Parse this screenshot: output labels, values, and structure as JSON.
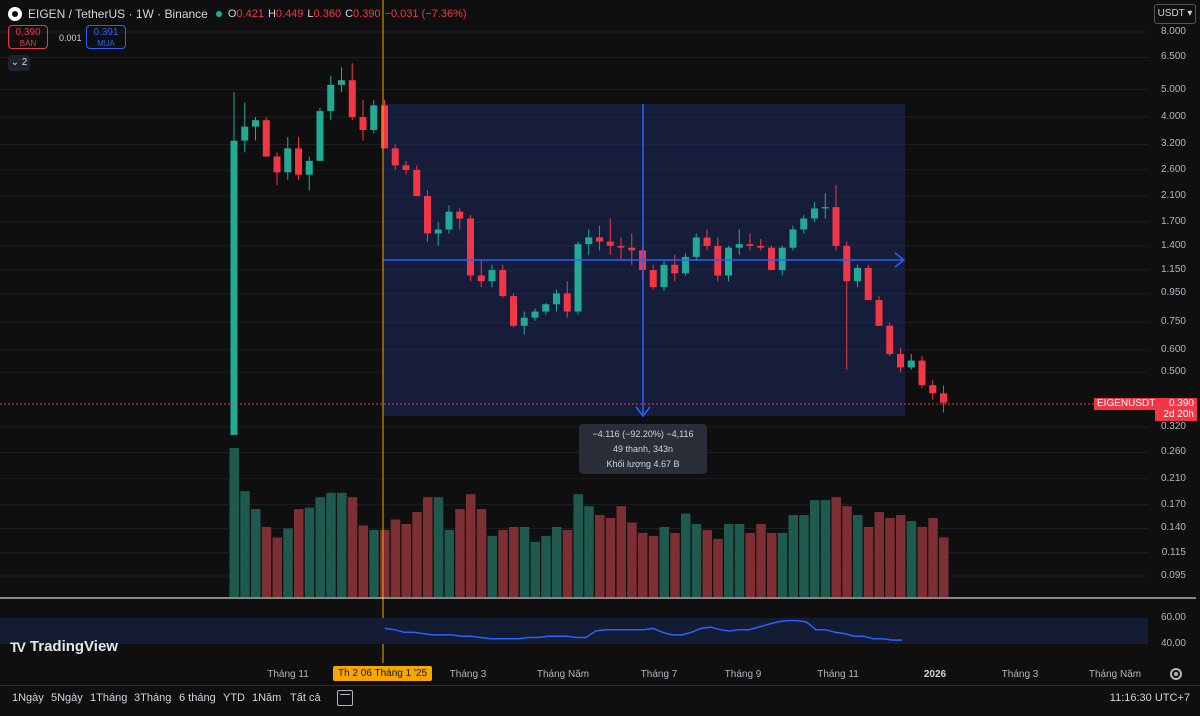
{
  "header": {
    "symbol": "EIGEN / TetherUS · 1W · Binance",
    "open_label": "O",
    "open": "0.421",
    "high_label": "H",
    "high": "0.449",
    "low_label": "L",
    "low": "0.360",
    "close_label": "C",
    "close": "0.390",
    "change": "−0.031 (−7.36%)"
  },
  "trade": {
    "sell_price": "0.390",
    "sell_label": "BÁN",
    "spread": "0.001",
    "buy_price": "0.391",
    "buy_label": "MUA"
  },
  "indicators_collapse": "⌄ 2",
  "currency_select": "USDT",
  "price_tag": {
    "symbol": "EIGENUSDT",
    "price": "0.390",
    "countdown": "2d 20h"
  },
  "measure_info": {
    "line1": "−4.116 (−92.20%) −4,116",
    "line2": "49 thanh, 343n",
    "line3": "Khối lượng 4.67 B"
  },
  "crosshair_date": "Th 2 06 Tháng 1 '25",
  "brand": "TradingView",
  "range_buttons": [
    "1Ngày",
    "5Ngày",
    "1Tháng",
    "3Tháng",
    "6 tháng",
    "YTD",
    "1Năm",
    "Tất cả"
  ],
  "clock": "11:16:30 UTC+7",
  "colors": {
    "up": "#22ab94",
    "down": "#f23645",
    "measure": "#2962ff",
    "crosshair": "#f7a600",
    "rsi": "#2962ff"
  },
  "chart_data": {
    "type": "candlestick",
    "title": "EIGEN / TetherUS · 1W · Binance",
    "price_scale": "log",
    "y_ticks": [
      "8.000",
      "6.500",
      "5.000",
      "4.000",
      "3.200",
      "2.600",
      "2.100",
      "1.700",
      "1.400",
      "1.150",
      "0.950",
      "0.750",
      "0.600",
      "0.500",
      "0.320",
      "0.260",
      "0.210",
      "0.170",
      "0.140",
      "0.115",
      "0.095"
    ],
    "x_ticks": [
      "Tháng 11",
      "Tháng 3",
      "Tháng Năm",
      "Tháng 7",
      "Tháng 9",
      "Tháng 11",
      "2026",
      "Tháng 3",
      "Tháng Năm"
    ],
    "rsi_ticks": [
      "60.00",
      "40.00"
    ],
    "candles": [
      {
        "o": 0.3,
        "h": 4.9,
        "l": 0.3,
        "c": 3.3
      },
      {
        "o": 3.3,
        "h": 4.5,
        "l": 3.0,
        "c": 3.7
      },
      {
        "o": 3.7,
        "h": 4.0,
        "l": 3.3,
        "c": 3.9
      },
      {
        "o": 3.9,
        "h": 4.0,
        "l": 2.9,
        "c": 2.9
      },
      {
        "o": 2.9,
        "h": 3.0,
        "l": 2.3,
        "c": 2.55
      },
      {
        "o": 2.55,
        "h": 3.4,
        "l": 2.4,
        "c": 3.1
      },
      {
        "o": 3.1,
        "h": 3.4,
        "l": 2.4,
        "c": 2.5
      },
      {
        "o": 2.5,
        "h": 2.9,
        "l": 2.2,
        "c": 2.8
      },
      {
        "o": 2.8,
        "h": 4.3,
        "l": 2.8,
        "c": 4.2
      },
      {
        "o": 4.2,
        "h": 5.6,
        "l": 3.9,
        "c": 5.2
      },
      {
        "o": 5.2,
        "h": 6.0,
        "l": 4.9,
        "c": 5.4
      },
      {
        "o": 5.4,
        "h": 6.2,
        "l": 3.9,
        "c": 4.0
      },
      {
        "o": 4.0,
        "h": 4.6,
        "l": 3.3,
        "c": 3.6
      },
      {
        "o": 3.6,
        "h": 4.6,
        "l": 3.5,
        "c": 4.4
      },
      {
        "o": 4.4,
        "h": 4.6,
        "l": 3.1,
        "c": 3.1
      },
      {
        "o": 3.1,
        "h": 3.2,
        "l": 2.6,
        "c": 2.7
      },
      {
        "o": 2.7,
        "h": 2.8,
        "l": 2.5,
        "c": 2.6
      },
      {
        "o": 2.6,
        "h": 2.7,
        "l": 2.1,
        "c": 2.1
      },
      {
        "o": 2.1,
        "h": 2.2,
        "l": 1.45,
        "c": 1.55
      },
      {
        "o": 1.55,
        "h": 1.7,
        "l": 1.4,
        "c": 1.6
      },
      {
        "o": 1.6,
        "h": 1.95,
        "l": 1.55,
        "c": 1.85
      },
      {
        "o": 1.85,
        "h": 1.9,
        "l": 1.6,
        "c": 1.75
      },
      {
        "o": 1.75,
        "h": 1.8,
        "l": 1.05,
        "c": 1.1
      },
      {
        "o": 1.1,
        "h": 1.25,
        "l": 1.0,
        "c": 1.05
      },
      {
        "o": 1.05,
        "h": 1.2,
        "l": 1.0,
        "c": 1.15
      },
      {
        "o": 1.15,
        "h": 1.2,
        "l": 0.92,
        "c": 0.93
      },
      {
        "o": 0.93,
        "h": 0.95,
        "l": 0.72,
        "c": 0.73
      },
      {
        "o": 0.73,
        "h": 0.82,
        "l": 0.68,
        "c": 0.78
      },
      {
        "o": 0.78,
        "h": 0.84,
        "l": 0.76,
        "c": 0.82
      },
      {
        "o": 0.82,
        "h": 0.88,
        "l": 0.8,
        "c": 0.87
      },
      {
        "o": 0.87,
        "h": 0.98,
        "l": 0.82,
        "c": 0.95
      },
      {
        "o": 0.95,
        "h": 1.05,
        "l": 0.78,
        "c": 0.82
      },
      {
        "o": 0.82,
        "h": 1.45,
        "l": 0.8,
        "c": 1.42
      },
      {
        "o": 1.42,
        "h": 1.6,
        "l": 1.3,
        "c": 1.5
      },
      {
        "o": 1.5,
        "h": 1.65,
        "l": 1.35,
        "c": 1.45
      },
      {
        "o": 1.45,
        "h": 1.75,
        "l": 1.3,
        "c": 1.4
      },
      {
        "o": 1.4,
        "h": 1.5,
        "l": 1.25,
        "c": 1.38
      },
      {
        "o": 1.38,
        "h": 1.55,
        "l": 1.2,
        "c": 1.35
      },
      {
        "o": 1.35,
        "h": 1.4,
        "l": 1.05,
        "c": 1.15
      },
      {
        "o": 1.15,
        "h": 1.2,
        "l": 0.98,
        "c": 1.0
      },
      {
        "o": 1.0,
        "h": 1.25,
        "l": 0.97,
        "c": 1.2
      },
      {
        "o": 1.2,
        "h": 1.3,
        "l": 1.05,
        "c": 1.12
      },
      {
        "o": 1.12,
        "h": 1.32,
        "l": 1.1,
        "c": 1.28
      },
      {
        "o": 1.28,
        "h": 1.55,
        "l": 1.25,
        "c": 1.5
      },
      {
        "o": 1.5,
        "h": 1.6,
        "l": 1.35,
        "c": 1.4
      },
      {
        "o": 1.4,
        "h": 1.5,
        "l": 1.05,
        "c": 1.1
      },
      {
        "o": 1.1,
        "h": 1.4,
        "l": 1.05,
        "c": 1.38
      },
      {
        "o": 1.38,
        "h": 1.6,
        "l": 1.3,
        "c": 1.42
      },
      {
        "o": 1.42,
        "h": 1.55,
        "l": 1.35,
        "c": 1.4
      },
      {
        "o": 1.4,
        "h": 1.48,
        "l": 1.35,
        "c": 1.38
      },
      {
        "o": 1.38,
        "h": 1.4,
        "l": 1.15,
        "c": 1.15
      },
      {
        "o": 1.15,
        "h": 1.4,
        "l": 1.1,
        "c": 1.38
      },
      {
        "o": 1.38,
        "h": 1.65,
        "l": 1.35,
        "c": 1.6
      },
      {
        "o": 1.6,
        "h": 1.8,
        "l": 1.55,
        "c": 1.75
      },
      {
        "o": 1.75,
        "h": 2.0,
        "l": 1.7,
        "c": 1.9
      },
      {
        "o": 1.9,
        "h": 2.15,
        "l": 1.75,
        "c": 1.92
      },
      {
        "o": 1.92,
        "h": 2.3,
        "l": 1.35,
        "c": 1.4
      },
      {
        "o": 1.4,
        "h": 1.45,
        "l": 0.51,
        "c": 1.05
      },
      {
        "o": 1.05,
        "h": 1.2,
        "l": 1.0,
        "c": 1.17
      },
      {
        "o": 1.17,
        "h": 1.2,
        "l": 0.9,
        "c": 0.9
      },
      {
        "o": 0.9,
        "h": 0.93,
        "l": 0.73,
        "c": 0.73
      },
      {
        "o": 0.73,
        "h": 0.75,
        "l": 0.57,
        "c": 0.58
      },
      {
        "o": 0.58,
        "h": 0.61,
        "l": 0.5,
        "c": 0.52
      },
      {
        "o": 0.52,
        "h": 0.58,
        "l": 0.51,
        "c": 0.55
      },
      {
        "o": 0.55,
        "h": 0.57,
        "l": 0.44,
        "c": 0.45
      },
      {
        "o": 0.45,
        "h": 0.47,
        "l": 0.4,
        "c": 0.421
      },
      {
        "o": 0.421,
        "h": 0.449,
        "l": 0.36,
        "c": 0.39
      }
    ],
    "volume_relative": [
      1.0,
      0.71,
      0.59,
      0.47,
      0.4,
      0.46,
      0.59,
      0.6,
      0.67,
      0.7,
      0.7,
      0.67,
      0.48,
      0.45,
      0.45,
      0.52,
      0.49,
      0.57,
      0.67,
      0.67,
      0.45,
      0.59,
      0.69,
      0.59,
      0.41,
      0.45,
      0.47,
      0.47,
      0.37,
      0.41,
      0.47,
      0.45,
      0.69,
      0.61,
      0.55,
      0.53,
      0.61,
      0.5,
      0.43,
      0.41,
      0.47,
      0.43,
      0.56,
      0.49,
      0.45,
      0.39,
      0.49,
      0.49,
      0.43,
      0.49,
      0.43,
      0.43,
      0.55,
      0.55,
      0.65,
      0.65,
      0.67,
      0.61,
      0.55,
      0.47,
      0.57,
      0.53,
      0.55,
      0.51,
      0.47,
      0.53,
      0.4
    ],
    "rsi": [
      52,
      51,
      49,
      49,
      48,
      47,
      47,
      47,
      46,
      46,
      45,
      44,
      44,
      44,
      44,
      45,
      45,
      46,
      46,
      46,
      45,
      45,
      50,
      51,
      51,
      51,
      51,
      51,
      52,
      49,
      47,
      47,
      49,
      52,
      53,
      51,
      50,
      51,
      51,
      53,
      55,
      57,
      58,
      58,
      57,
      51,
      51,
      49,
      48,
      46,
      46,
      44,
      44,
      43,
      43
    ]
  }
}
